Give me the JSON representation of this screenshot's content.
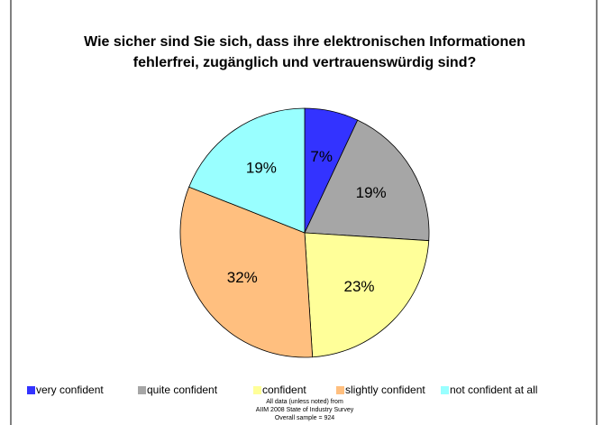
{
  "chart_data": {
    "type": "pie",
    "title": [
      "Wie sicher sind Sie sich, dass ihre elektronischen Informationen",
      "fehlerfrei, zugänglich und vertrauenswürdig sind?"
    ],
    "categories": [
      "very confident",
      "quite confident",
      "confident",
      "slightly confident",
      "not confident at all"
    ],
    "values": [
      7,
      19,
      23,
      32,
      19
    ],
    "value_labels": [
      "7%",
      "19%",
      "23%",
      "32%",
      "19%"
    ],
    "colors": [
      "#3333ff",
      "#a6a6a6",
      "#ffff99",
      "#ffbf7f",
      "#99ffff"
    ],
    "footnote": [
      "All data (unless noted) from",
      "AIIM 2008 State of Industry Survey",
      "Overall sample = 924"
    ]
  }
}
